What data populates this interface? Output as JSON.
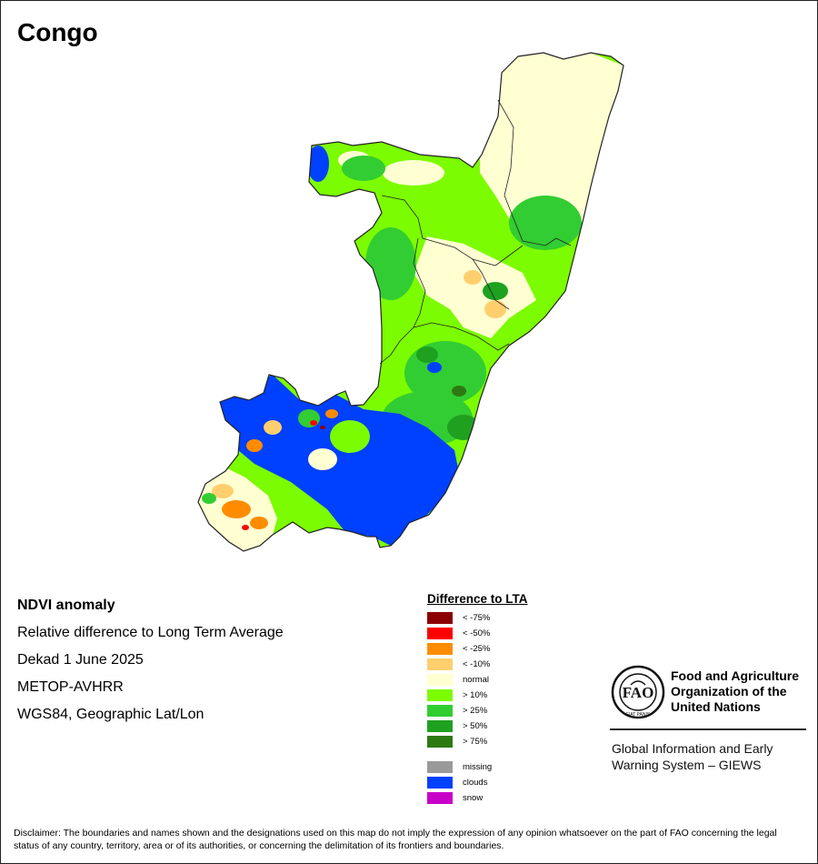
{
  "map": {
    "title": "Congo",
    "colors": {
      "lt_75": "#8b0000",
      "lt_50": "#ff0000",
      "lt_25": "#ff8c00",
      "lt_10": "#ffcf6e",
      "normal": "#ffffd2",
      "gt_10": "#7cfc00",
      "gt_25": "#32cd32",
      "gt_50": "#1fa01f",
      "gt_75": "#2d7a12",
      "missing": "#9a9a9a",
      "clouds": "#0040ff",
      "snow": "#c800c8"
    }
  },
  "info": {
    "heading": "NDVI anomaly",
    "line1": "Relative difference to Long Term Average",
    "line2": "Dekad 1 June 2025",
    "line3": "METOP-AVHRR",
    "line4": "WGS84, Geographic Lat/Lon"
  },
  "legend": {
    "title": "Difference to LTA",
    "items": [
      {
        "label": "< -75%",
        "color": "#8b0000"
      },
      {
        "label": "< -50%",
        "color": "#ff0000"
      },
      {
        "label": "< -25%",
        "color": "#ff8c00"
      },
      {
        "label": "< -10%",
        "color": "#ffcf6e"
      },
      {
        "label": "normal",
        "color": "#ffffd2"
      },
      {
        "label": "> 10%",
        "color": "#7cfc00"
      },
      {
        "label": "> 25%",
        "color": "#32cd32"
      },
      {
        "label": "> 50%",
        "color": "#1fa01f"
      },
      {
        "label": "> 75%",
        "color": "#2d7a12"
      },
      {
        "label": "missing",
        "color": "#9a9a9a"
      },
      {
        "label": "clouds",
        "color": "#0040ff"
      },
      {
        "label": "snow",
        "color": "#c800c8"
      }
    ]
  },
  "fao": {
    "name": "Food and Agriculture Organization of the United Nations",
    "logo_letters": "FAO",
    "logo_motto": "FIAT PANIS",
    "giews": "Global Information and Early Warning System – GIEWS"
  },
  "disclaimer": "Disclaimer: The boundaries and names shown and the designations used on this map do not imply the expression of any opinion whatsoever on the part of FAO concerning the legal status of any country, territory, area or of its authorities, or concerning the delimitation of its frontiers and boundaries."
}
